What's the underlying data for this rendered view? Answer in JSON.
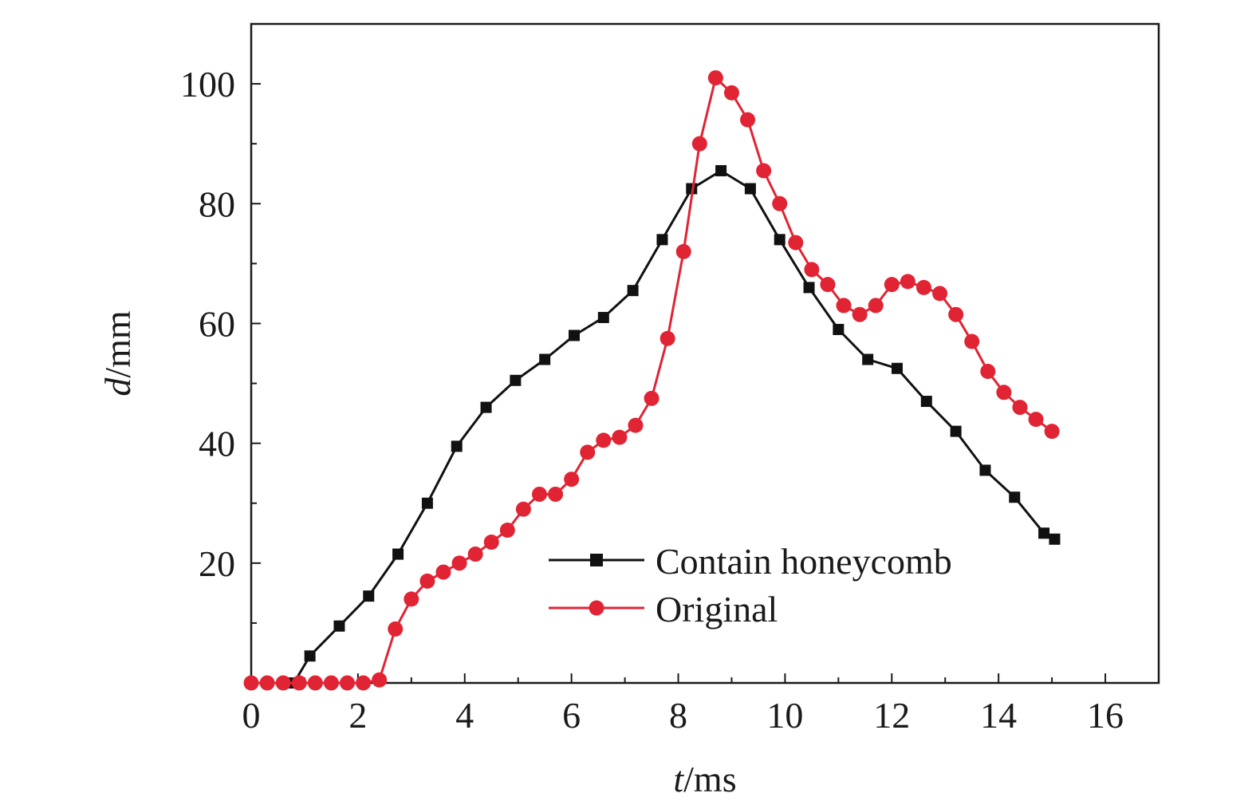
{
  "chart_data": {
    "type": "line",
    "xlabel_var": "t",
    "xlabel_unit": "/ms",
    "ylabel_var": "d",
    "ylabel_unit": "/mm",
    "xlim": [
      0,
      17
    ],
    "ylim": [
      0,
      110
    ],
    "x_ticks": [
      0,
      2,
      4,
      6,
      8,
      10,
      12,
      14,
      16
    ],
    "x_tick_labels": [
      "0",
      "2",
      "4",
      "6",
      "8",
      "10",
      "12",
      "14",
      "16"
    ],
    "y_ticks": [
      0,
      20,
      40,
      60,
      80,
      100
    ],
    "y_tick_labels": [
      "",
      "20",
      "40",
      "60",
      "80",
      "100"
    ],
    "x_minor_ticks": [
      1,
      3,
      5,
      7,
      9,
      11,
      13,
      15
    ],
    "y_minor_ticks": [
      10,
      30,
      50,
      70,
      90
    ],
    "grid": false,
    "legend_position": "lower-center",
    "series": [
      {
        "name": "Contain honeycomb",
        "color": "#111111",
        "marker": "square",
        "points": [
          [
            0.0,
            0.0
          ],
          [
            0.8,
            0.0
          ],
          [
            1.1,
            4.5
          ],
          [
            1.65,
            9.5
          ],
          [
            2.2,
            14.5
          ],
          [
            2.75,
            21.5
          ],
          [
            3.3,
            30.0
          ],
          [
            3.85,
            39.5
          ],
          [
            4.4,
            46.0
          ],
          [
            4.95,
            50.5
          ],
          [
            5.5,
            54.0
          ],
          [
            6.05,
            58.0
          ],
          [
            6.6,
            61.0
          ],
          [
            7.15,
            65.5
          ],
          [
            7.7,
            74.0
          ],
          [
            8.25,
            82.5
          ],
          [
            8.8,
            85.5
          ],
          [
            9.35,
            82.5
          ],
          [
            9.9,
            74.0
          ],
          [
            10.45,
            66.0
          ],
          [
            11.0,
            59.0
          ],
          [
            11.55,
            54.0
          ],
          [
            12.1,
            52.5
          ],
          [
            12.65,
            47.0
          ],
          [
            13.2,
            42.0
          ],
          [
            13.75,
            35.5
          ],
          [
            14.3,
            31.0
          ],
          [
            14.85,
            25.0
          ],
          [
            15.05,
            24.0
          ]
        ]
      },
      {
        "name": "Original",
        "color": "#e02434",
        "marker": "circle",
        "points": [
          [
            0.0,
            0.0
          ],
          [
            0.3,
            0.0
          ],
          [
            0.6,
            0.0
          ],
          [
            0.9,
            0.0
          ],
          [
            1.2,
            0.0
          ],
          [
            1.5,
            0.0
          ],
          [
            1.8,
            0.0
          ],
          [
            2.1,
            0.0
          ],
          [
            2.4,
            0.5
          ],
          [
            2.7,
            9.0
          ],
          [
            3.0,
            14.0
          ],
          [
            3.3,
            17.0
          ],
          [
            3.6,
            18.5
          ],
          [
            3.9,
            20.0
          ],
          [
            4.2,
            21.5
          ],
          [
            4.5,
            23.5
          ],
          [
            4.8,
            25.5
          ],
          [
            5.1,
            29.0
          ],
          [
            5.4,
            31.5
          ],
          [
            5.7,
            31.5
          ],
          [
            6.0,
            34.0
          ],
          [
            6.3,
            38.5
          ],
          [
            6.6,
            40.5
          ],
          [
            6.9,
            41.0
          ],
          [
            7.2,
            43.0
          ],
          [
            7.5,
            47.5
          ],
          [
            7.8,
            57.5
          ],
          [
            8.1,
            72.0
          ],
          [
            8.4,
            90.0
          ],
          [
            8.7,
            101.0
          ],
          [
            9.0,
            98.5
          ],
          [
            9.3,
            94.0
          ],
          [
            9.6,
            85.5
          ],
          [
            9.9,
            80.0
          ],
          [
            10.2,
            73.5
          ],
          [
            10.5,
            69.0
          ],
          [
            10.8,
            66.5
          ],
          [
            11.1,
            63.0
          ],
          [
            11.4,
            61.5
          ],
          [
            11.7,
            63.0
          ],
          [
            12.0,
            66.5
          ],
          [
            12.3,
            67.0
          ],
          [
            12.6,
            66.0
          ],
          [
            12.9,
            65.0
          ],
          [
            13.2,
            61.5
          ],
          [
            13.5,
            57.0
          ],
          [
            13.8,
            52.0
          ],
          [
            14.1,
            48.5
          ],
          [
            14.4,
            46.0
          ],
          [
            14.7,
            44.0
          ],
          [
            15.0,
            42.0
          ]
        ]
      }
    ]
  }
}
